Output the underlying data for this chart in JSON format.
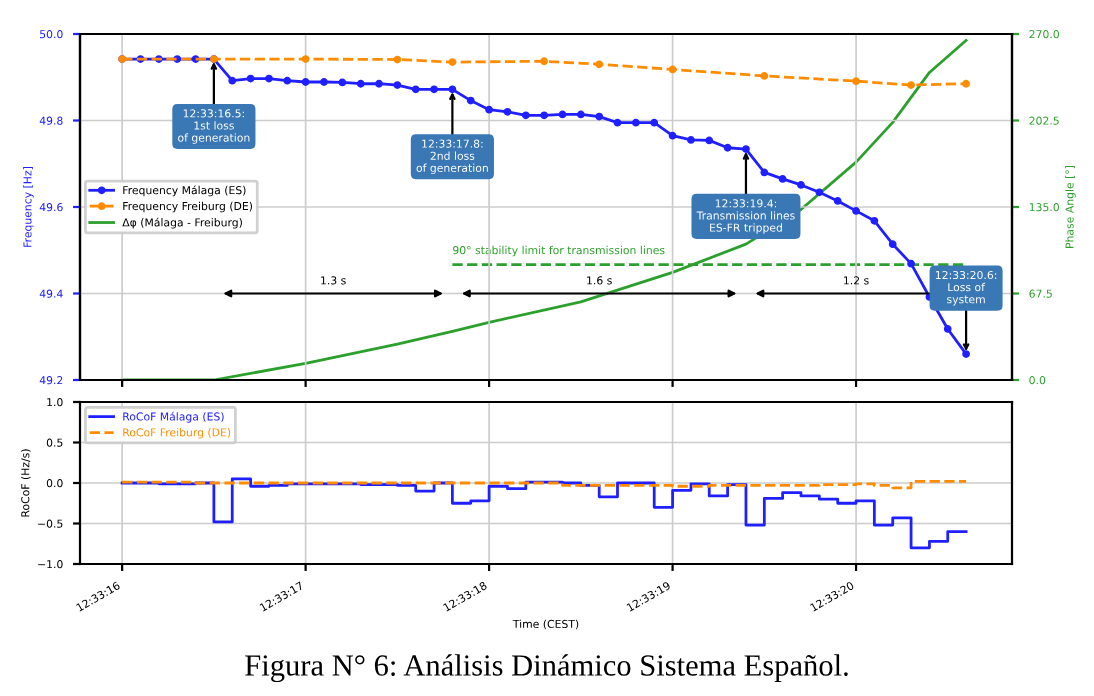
{
  "chart_data": [
    {
      "type": "line",
      "ylabel": "Frequency [Hz]",
      "y2label": "Phase Angle [°]",
      "x": [
        12.5544444,
        12.5544722,
        12.5545,
        12.5545278,
        12.5545556,
        12.5545833,
        12.5546111,
        12.5546389,
        12.5546667,
        12.5546944,
        12.5547222,
        12.55475,
        12.5547778,
        12.5548056,
        12.5548333,
        12.5548611,
        12.5548889,
        12.5549167,
        12.5549444,
        12.5549722,
        12.555,
        12.5550278,
        12.5550556,
        12.5550833,
        12.5551111,
        12.5551389,
        12.5551667,
        12.5551944,
        12.5552222,
        12.55525,
        12.5552778,
        12.5553056,
        12.5553333,
        12.5553611,
        12.5553889,
        12.5554167,
        12.5554444,
        12.5554722,
        12.5555,
        12.5555278,
        12.5555556,
        12.5555833,
        12.5556111,
        12.5556389,
        12.5556667,
        12.5556944,
        12.5557222
      ],
      "series": [
        {
          "name": "Frequency Málaga (ES)",
          "color": "#1f1fff",
          "marker": "circle",
          "line_style": "solid",
          "values": [
            49.942,
            49.942,
            49.942,
            49.942,
            49.942,
            49.942,
            49.892,
            49.897,
            49.897,
            49.892,
            49.889,
            49.889,
            49.888,
            49.885,
            49.885,
            49.882,
            49.872,
            49.872,
            49.872,
            49.846,
            49.825,
            49.82,
            49.812,
            49.812,
            49.814,
            49.814,
            49.809,
            49.795,
            49.795,
            49.795,
            49.765,
            49.755,
            49.754,
            49.737,
            49.734,
            49.68,
            49.665,
            49.651,
            49.634,
            49.614,
            49.591,
            49.568,
            49.514,
            49.469,
            49.392,
            49.318,
            49.26
          ]
        },
        {
          "name": "Frequency Freiburg (DE)",
          "color": "#ff8c00",
          "marker": "circle",
          "line_style": "dashed",
          "x": [
            12.5544444,
            12.5545833,
            12.5547222,
            12.5548611,
            12.5549444,
            12.5550833,
            12.5551667,
            12.5552778,
            12.5554167,
            12.5555556,
            12.5556389,
            12.5557222
          ],
          "values": [
            49.942,
            49.942,
            49.942,
            49.941,
            49.935,
            49.937,
            49.93,
            49.918,
            49.903,
            49.891,
            49.882,
            49.885
          ]
        },
        {
          "name": "Δφ (Málaga - Freiburg)",
          "color": "#2ca02c",
          "marker": "none",
          "line_style": "solid",
          "axis": "y2",
          "x": [
            12.5544444,
            12.5545833,
            12.5547222,
            12.5548611,
            12.5549444,
            12.555,
            12.5551389,
            12.5552778,
            12.5553889,
            12.5554722,
            12.5555556,
            12.5556111,
            12.5556667,
            12.5557222
          ],
          "values": [
            0,
            0,
            13,
            28,
            38,
            45,
            61,
            84,
            106,
            133,
            170,
            201,
            240,
            265
          ]
        }
      ],
      "xlim": [
        12.5543806,
        12.5557917
      ],
      "xticks": [
        {
          "value": 12.5544444,
          "label": null
        },
        {
          "value": 12.5547222,
          "label": null
        },
        {
          "value": 12.555,
          "label": null
        },
        {
          "value": 12.5552778,
          "label": null
        },
        {
          "value": 12.5555556,
          "label": null
        }
      ],
      "ylim": [
        49.2,
        50.0
      ],
      "yticks": [
        49.2,
        49.4,
        49.6,
        49.8,
        {
          "value": 50.0,
          "label": "50.0"
        }
      ],
      "y2lim": [
        0,
        270
      ],
      "y2ticks": [
        {
          "value": 0,
          "label": "0.0"
        },
        67.5,
        {
          "value": 135,
          "label": "135.0"
        },
        202.5,
        {
          "value": 270,
          "label": "270.0"
        }
      ],
      "tick_labels": "y",
      "grid": true,
      "legend": "left",
      "ref_lines": [
        {
          "axis": "y2",
          "value": 90,
          "label": "90° stability limit for transmission lines",
          "color": "#2ca02c",
          "line_style": "dashed"
        }
      ],
      "annotations": [
        {
          "text": "12:33:16.5:\n1st loss\nof generation",
          "x": 12.5545833,
          "y": 49.942
        },
        {
          "text": "12:33:17.8:\n2nd loss\nof generation",
          "x": 12.5549444,
          "y": 49.872
        },
        {
          "text": "12:33:19.4:\nTransmission lines\nES-FR tripped",
          "x": 12.5553889,
          "y": 49.734
        },
        {
          "text": "12:33:20.6:\nLoss of\nsystem",
          "x": 12.5557222,
          "y": 49.26
        },
        "1.3 s",
        "1.6 s",
        "1.2 s"
      ]
    },
    {
      "type": "step",
      "ylabel": "RoCoF (Hz/s)",
      "xlabel": "Time (CEST)",
      "x": [
        12.5544444,
        12.5544722,
        12.5545,
        12.5545278,
        12.5545556,
        12.5545833,
        12.5546111,
        12.5546389,
        12.5546667,
        12.5546944,
        12.5547222,
        12.55475,
        12.5547778,
        12.5548056,
        12.5548333,
        12.5548611,
        12.5548889,
        12.5549167,
        12.5549444,
        12.5549722,
        12.555,
        12.5550278,
        12.5550556,
        12.5550833,
        12.5551111,
        12.5551389,
        12.5551667,
        12.5551944,
        12.5552222,
        12.55525,
        12.5552778,
        12.5553056,
        12.5553333,
        12.5553611,
        12.5553889,
        12.5554167,
        12.5554444,
        12.5554722,
        12.5555,
        12.5555278,
        12.5555556,
        12.5555833,
        12.5556111,
        12.5556389,
        12.5556667,
        12.5556944,
        12.5557222
      ],
      "series": [
        {
          "name": "RoCoF Málaga (ES)",
          "color": "#1f1fff",
          "line_style": "solid",
          "values": [
            0,
            0,
            -0.01,
            -0.01,
            0,
            -0.48,
            0.05,
            -0.04,
            -0.03,
            -0.01,
            -0.01,
            -0.01,
            -0.01,
            -0.02,
            -0.02,
            -0.03,
            -0.1,
            0,
            -0.25,
            -0.22,
            -0.04,
            -0.07,
            0.01,
            0.01,
            0,
            -0.03,
            -0.17,
            0,
            0,
            -0.3,
            -0.09,
            -0.01,
            -0.16,
            -0.02,
            -0.52,
            -0.19,
            -0.12,
            -0.16,
            -0.2,
            -0.25,
            -0.22,
            -0.52,
            -0.43,
            -0.8,
            -0.72,
            -0.6,
            -0.6
          ]
        },
        {
          "name": "RoCoF Freiburg (DE)",
          "color": "#ff8c00",
          "line_style": "dashed",
          "x": [
            12.5544444,
            12.5545556,
            12.5547222,
            12.5548611,
            12.555,
            12.5551111,
            12.5552778,
            12.5553333,
            12.5554167,
            12.5555,
            12.5555556,
            12.5555833,
            12.5556111,
            12.5556389,
            12.5557222
          ],
          "values": [
            0.01,
            0,
            0,
            0,
            0,
            -0.03,
            -0.04,
            -0.03,
            -0.03,
            -0.02,
            -0.01,
            -0.03,
            -0.06,
            0.02,
            0.02
          ]
        }
      ],
      "xlim": [
        12.5543806,
        12.5557917
      ],
      "xticks": [
        {
          "value": 12.5544444,
          "label": "12:33:16"
        },
        {
          "value": 12.5547222,
          "label": "12:33:17"
        },
        {
          "value": 12.555,
          "label": "12:33:18"
        },
        {
          "value": 12.5552778,
          "label": "12:33:19"
        },
        {
          "value": 12.5555556,
          "label": "12:33:20"
        }
      ],
      "ylim": [
        -1.0,
        1.0
      ],
      "yticks": [
        {
          "value": -1.0,
          "label": "−1.0"
        },
        {
          "value": -0.5,
          "label": "−0.5"
        },
        {
          "value": 0,
          "label": "0.0"
        },
        0.5,
        {
          "value": 1.0,
          "label": "1.0"
        }
      ],
      "grid": true,
      "legend": "top left",
      "annotations": [
        "Figura N° 6: Análisis Dinámico Sistema Español."
      ]
    }
  ]
}
